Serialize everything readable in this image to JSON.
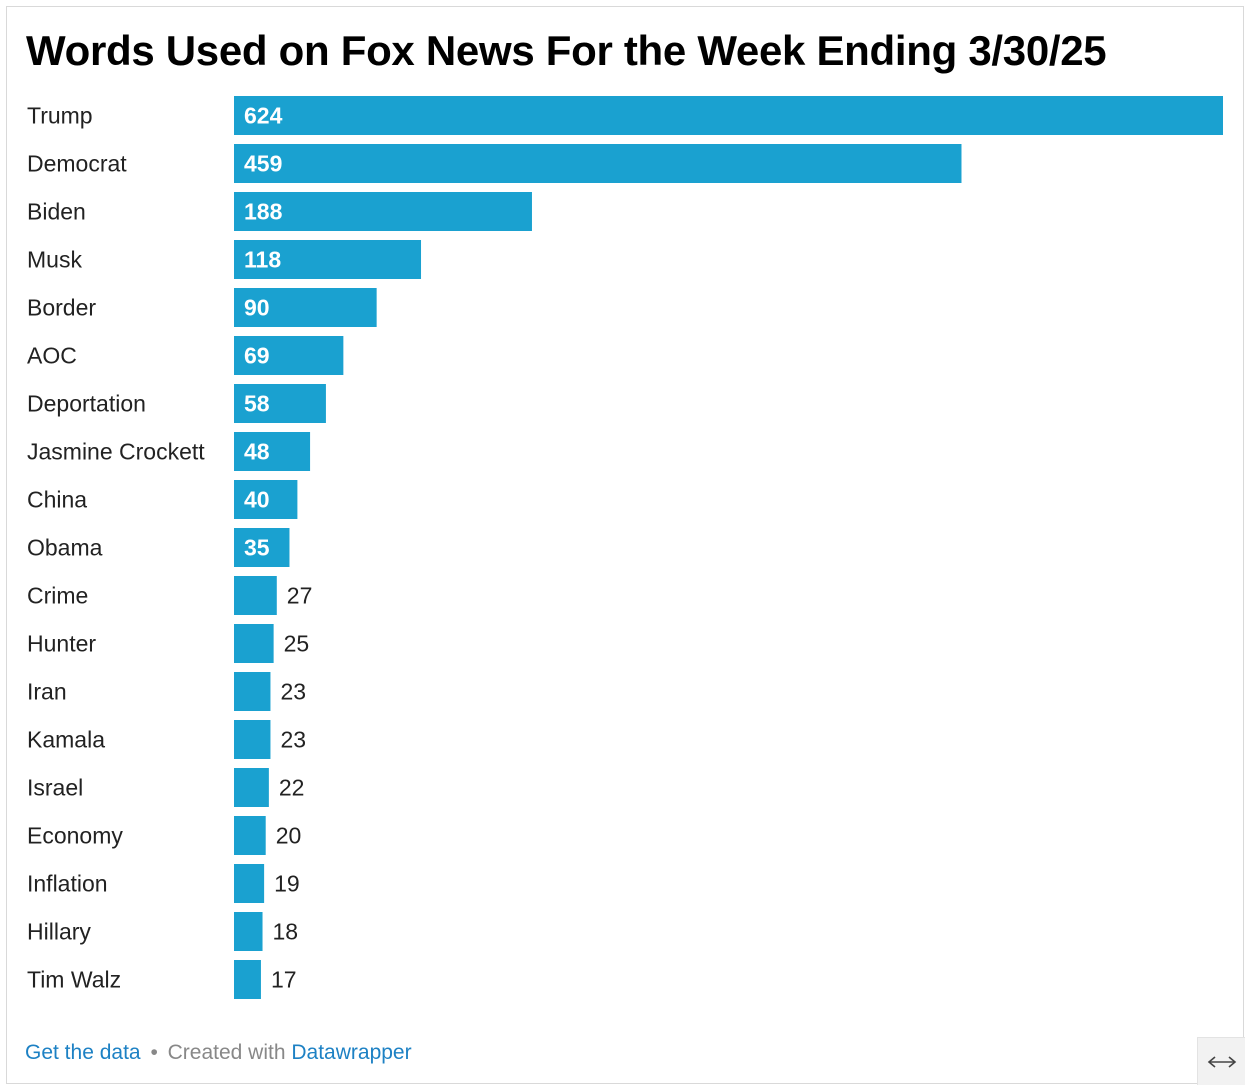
{
  "chart_data": {
    "type": "bar",
    "orientation": "horizontal",
    "title": "Words Used on Fox News For the Week Ending 3/30/25",
    "categories": [
      "Trump",
      "Democrat",
      "Biden",
      "Musk",
      "Border",
      "AOC",
      "Deportation",
      "Jasmine Crockett",
      "China",
      "Obama",
      "Crime",
      "Hunter",
      "Iran",
      "Kamala",
      "Israel",
      "Economy",
      "Inflation",
      "Hillary",
      "Tim Walz"
    ],
    "values": [
      624,
      459,
      188,
      118,
      90,
      69,
      58,
      48,
      40,
      35,
      27,
      25,
      23,
      23,
      22,
      20,
      19,
      18,
      17
    ],
    "xlim": [
      0,
      624
    ],
    "grid": false,
    "legend": "none",
    "bar_color": "#1aa1d0"
  },
  "footer": {
    "get_data": "Get the data",
    "separator": "•",
    "created_with": "Created with",
    "tool": "Datawrapper"
  },
  "expand_icon": "horizontal-expand-arrows-icon"
}
